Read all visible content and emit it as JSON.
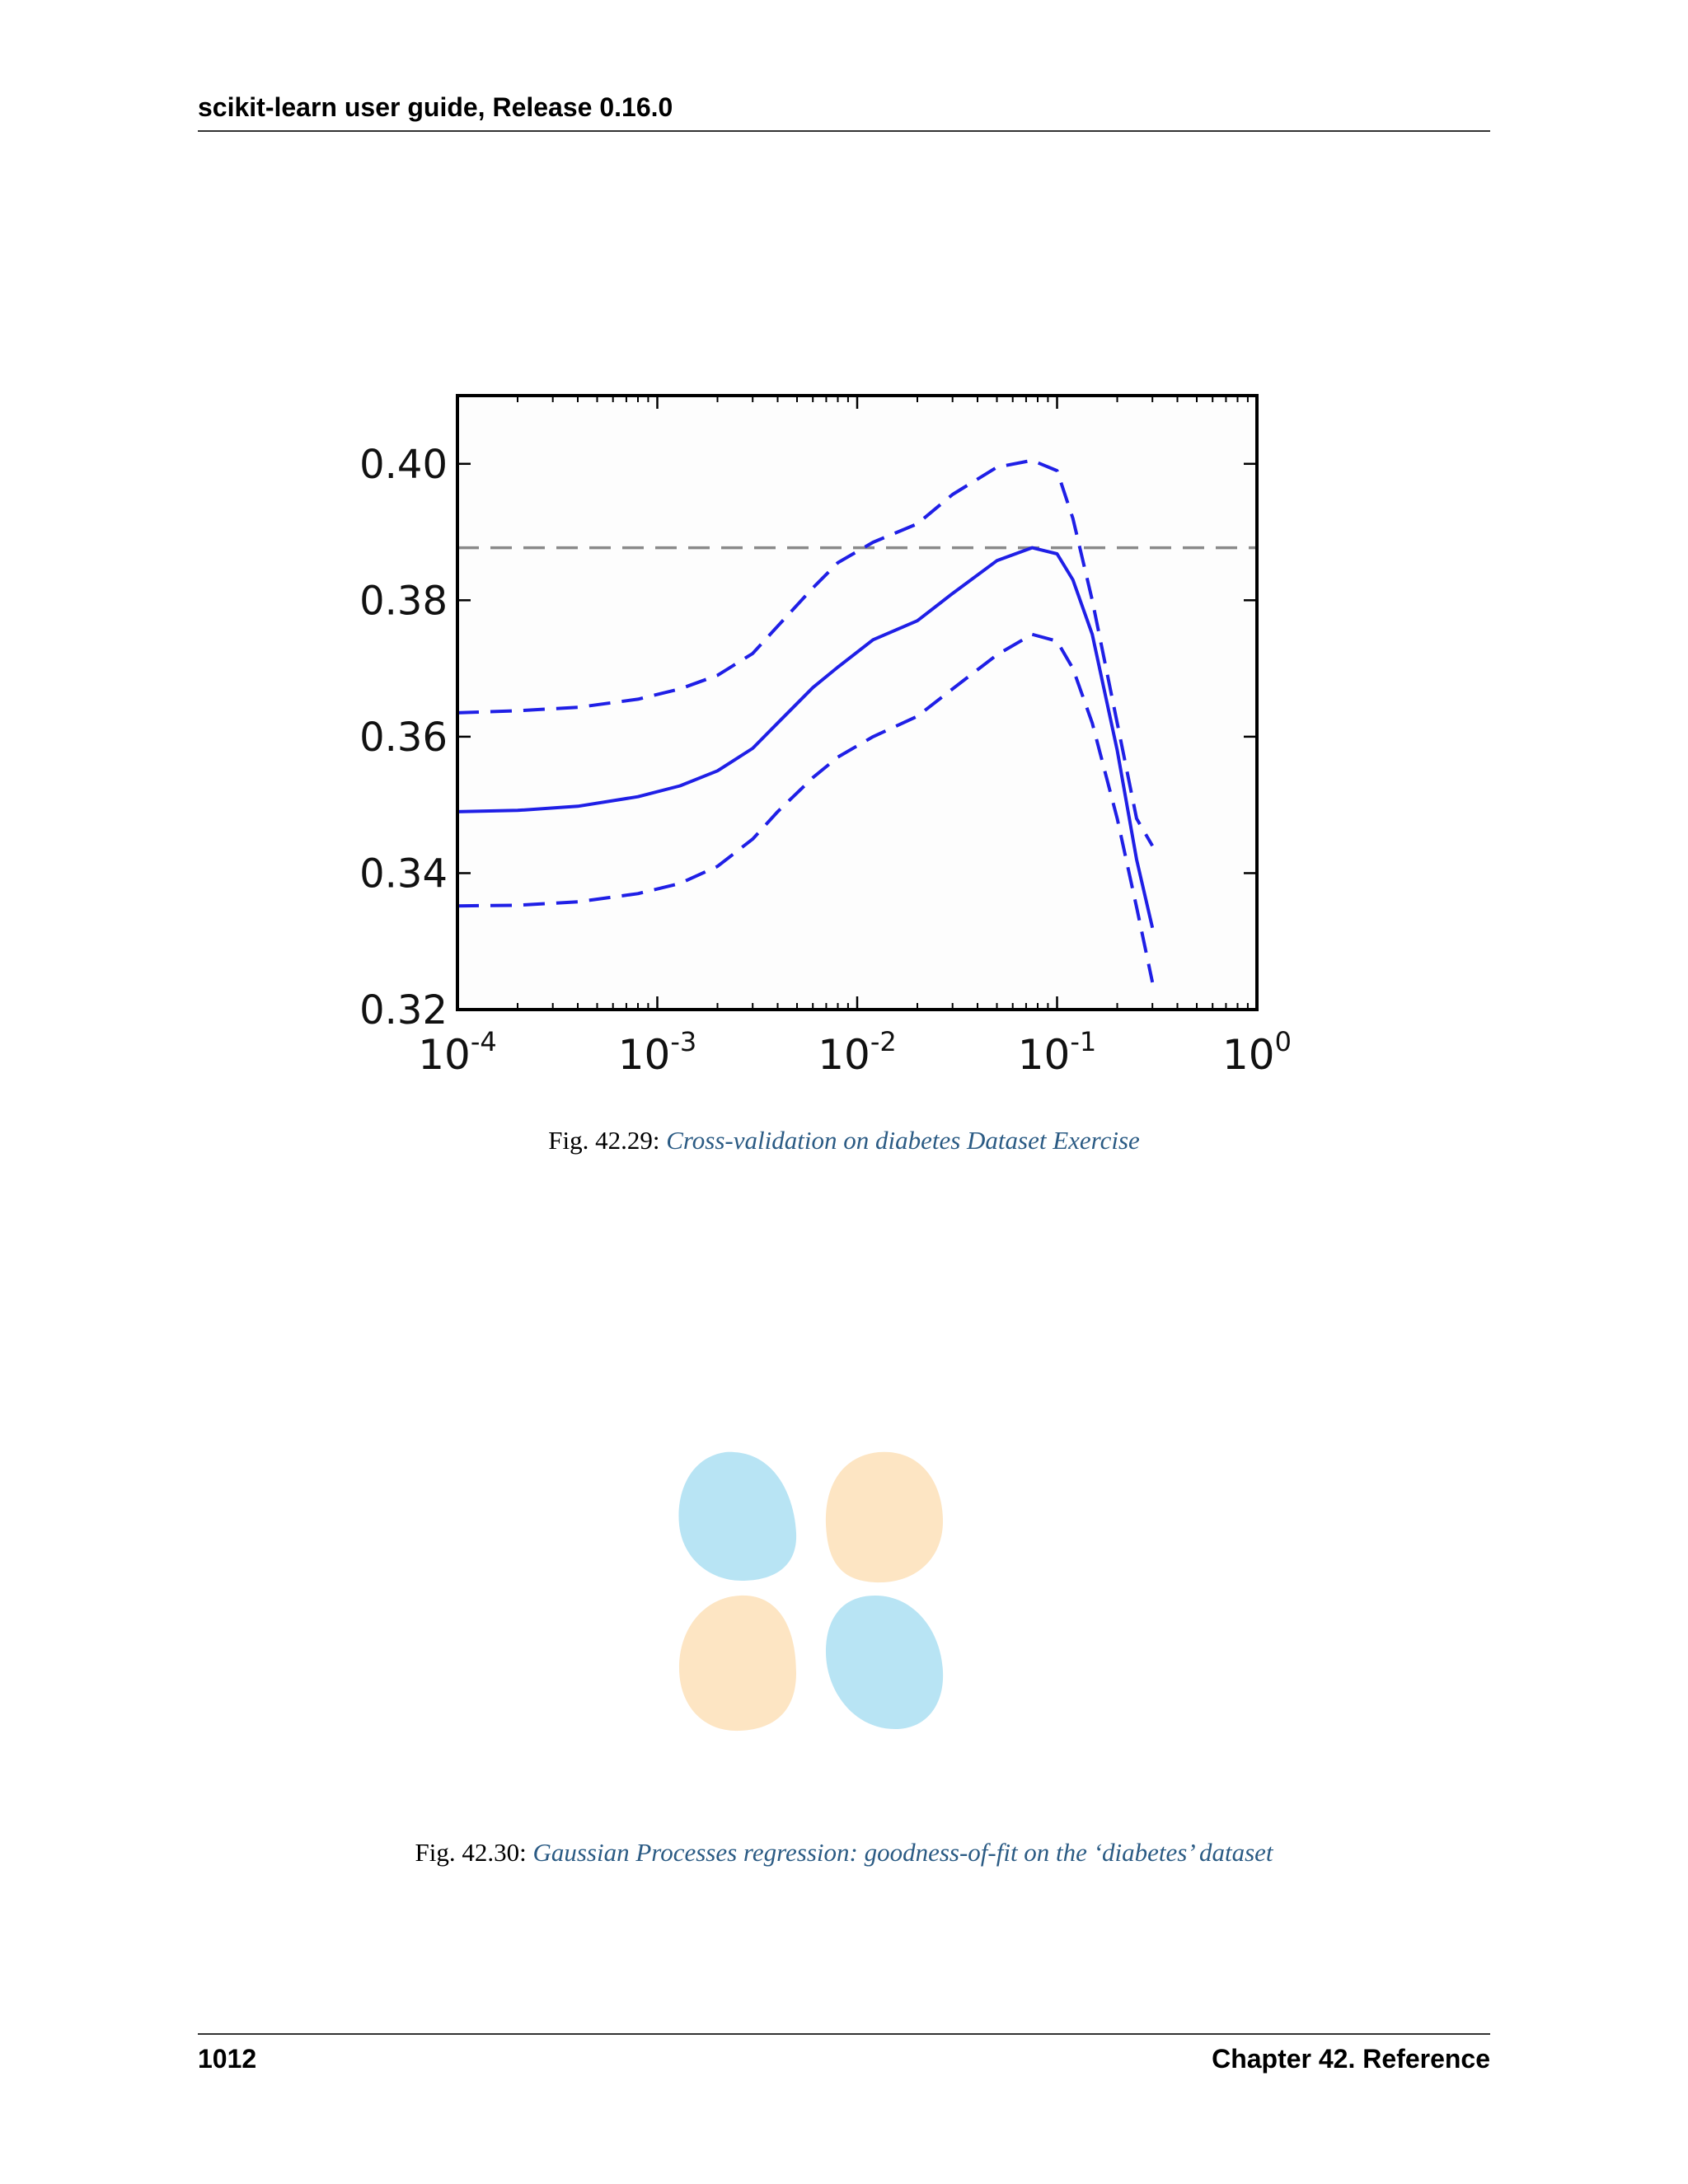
{
  "header": {
    "title": "scikit-learn user guide, Release 0.16.0"
  },
  "figure1": {
    "caption_number": "Fig. 42.29:",
    "caption_link": "Cross-validation on diabetes Dataset Exercise"
  },
  "figure2": {
    "caption_number": "Fig. 42.30:",
    "caption_link": "Gaussian Processes regression: goodness-of-fit on the ‘diabetes’ dataset",
    "blob_colors": {
      "blue": "#b8e4f4",
      "orange": "#fde5c3"
    }
  },
  "footer": {
    "page_number": "1012",
    "chapter": "Chapter 42. Reference"
  },
  "chart_data": {
    "type": "line",
    "xscale": "log",
    "xlim": [
      0.0001,
      1
    ],
    "ylim": [
      0.32,
      0.41
    ],
    "x_ticks": [
      {
        "value": 0.0001,
        "base": "10",
        "exp": "-4"
      },
      {
        "value": 0.001,
        "base": "10",
        "exp": "-3"
      },
      {
        "value": 0.01,
        "base": "10",
        "exp": "-2"
      },
      {
        "value": 0.1,
        "base": "10",
        "exp": "-1"
      },
      {
        "value": 1,
        "base": "10",
        "exp": "0"
      }
    ],
    "y_ticks": [
      {
        "value": 0.32,
        "label": "0.32"
      },
      {
        "value": 0.34,
        "label": "0.34"
      },
      {
        "value": 0.36,
        "label": "0.36"
      },
      {
        "value": 0.38,
        "label": "0.38"
      },
      {
        "value": 0.4,
        "label": "0.40"
      }
    ],
    "x": [
      0.0001,
      0.0002,
      0.0004,
      0.0008,
      0.0013,
      0.002,
      0.003,
      0.004,
      0.006,
      0.008,
      0.012,
      0.02,
      0.03,
      0.05,
      0.075,
      0.1,
      0.12,
      0.15,
      0.2,
      0.25,
      0.3
    ],
    "series": [
      {
        "style": "solid",
        "color": "#1f1fe6",
        "values": [
          0.349,
          0.3492,
          0.3498,
          0.3512,
          0.3528,
          0.355,
          0.3583,
          0.362,
          0.3672,
          0.3702,
          0.3742,
          0.377,
          0.381,
          0.3858,
          0.3877,
          0.3868,
          0.383,
          0.375,
          0.358,
          0.342,
          0.332
        ]
      },
      {
        "style": "dashed",
        "color": "#1f1fe6",
        "values": [
          0.3635,
          0.3638,
          0.3643,
          0.3655,
          0.367,
          0.369,
          0.3722,
          0.3762,
          0.3818,
          0.3855,
          0.3885,
          0.3912,
          0.3955,
          0.3995,
          0.4005,
          0.399,
          0.392,
          0.38,
          0.362,
          0.348,
          0.344
        ]
      },
      {
        "style": "dashed",
        "color": "#1f1fe6",
        "values": [
          0.3352,
          0.3353,
          0.3358,
          0.337,
          0.3385,
          0.341,
          0.345,
          0.349,
          0.354,
          0.357,
          0.36,
          0.363,
          0.367,
          0.372,
          0.375,
          0.374,
          0.37,
          0.362,
          0.348,
          0.335,
          0.324
        ]
      }
    ],
    "reference_line": {
      "value": 0.3877,
      "style": "dashed",
      "color": "#8a8a8a"
    }
  }
}
